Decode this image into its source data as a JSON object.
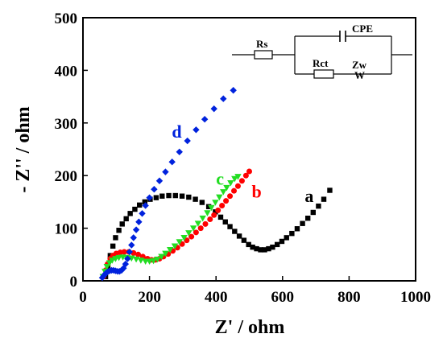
{
  "chart_data": {
    "type": "scatter",
    "xlabel": "Z' / ohm",
    "ylabel": "- Z'' / ohm",
    "xlim": [
      0,
      1000
    ],
    "ylim": [
      0,
      500
    ],
    "xticks": [
      "0",
      "200",
      "400",
      "600",
      "800",
      "1000"
    ],
    "yticks": [
      "0",
      "100",
      "200",
      "300",
      "400",
      "500"
    ],
    "grid": false,
    "series": [
      {
        "name": "a",
        "color": "#000000",
        "marker": "square",
        "x": [
          68,
          75,
          82,
          90,
          98,
          108,
          118,
          130,
          142,
          156,
          170,
          186,
          202,
          220,
          238,
          258,
          278,
          298,
          318,
          338,
          358,
          378,
          398,
          414,
          428,
          442,
          456,
          470,
          484,
          498,
          510,
          522,
          534,
          546,
          558,
          570,
          584,
          598,
          612,
          628,
          644,
          660,
          676,
          692,
          708,
          724,
          742
        ],
        "y": [
          8,
          28,
          48,
          66,
          82,
          96,
          108,
          118,
          128,
          136,
          144,
          150,
          155,
          158,
          161,
          162,
          162,
          161,
          159,
          155,
          149,
          141,
          131,
          121,
          112,
          103,
          94,
          85,
          77,
          69,
          64,
          61,
          59,
          59,
          61,
          64,
          69,
          75,
          82,
          90,
          99,
          109,
          119,
          130,
          142,
          155,
          172
        ]
      },
      {
        "name": "b",
        "color": "#ff0000",
        "marker": "circle",
        "x": [
          62,
          68,
          74,
          82,
          90,
          100,
          112,
          124,
          138,
          152,
          166,
          180,
          194,
          206,
          218,
          230,
          242,
          256,
          270,
          284,
          298,
          312,
          326,
          340,
          354,
          368,
          382,
          394,
          406,
          418,
          430,
          442,
          454,
          466,
          478,
          490,
          500
        ],
        "y": [
          8,
          20,
          32,
          42,
          48,
          52,
          54,
          55,
          55,
          53,
          50,
          46,
          42,
          40,
          40,
          42,
          46,
          51,
          57,
          63,
          70,
          77,
          84,
          92,
          100,
          108,
          117,
          125,
          134,
          143,
          152,
          161,
          171,
          180,
          190,
          200,
          208
        ]
      },
      {
        "name": "c",
        "color": "#22dd22",
        "marker": "triangle-down",
        "x": [
          60,
          66,
          72,
          80,
          88,
          98,
          108,
          120,
          132,
          146,
          160,
          174,
          188,
          200,
          212,
          224,
          236,
          248,
          262,
          276,
          290,
          304,
          318,
          332,
          346,
          360,
          374,
          386,
          398,
          410,
          422,
          432,
          444,
          456,
          466
        ],
        "y": [
          8,
          18,
          27,
          34,
          39,
          42,
          44,
          45,
          44,
          43,
          41,
          39,
          37,
          37,
          38,
          41,
          46,
          52,
          59,
          66,
          74,
          82,
          91,
          100,
          109,
          119,
          129,
          139,
          149,
          159,
          169,
          177,
          186,
          194,
          198
        ]
      },
      {
        "name": "d",
        "color": "#0022dd",
        "marker": "diamond",
        "x": [
          58,
          63,
          68,
          74,
          80,
          86,
          92,
          98,
          104,
          110,
          116,
          122,
          128,
          134,
          140,
          146,
          152,
          160,
          168,
          178,
          188,
          200,
          214,
          230,
          248,
          268,
          290,
          314,
          340,
          366,
          394,
          422,
          452
        ],
        "y": [
          6,
          10,
          14,
          17,
          19,
          20,
          20,
          19,
          18,
          18,
          20,
          24,
          32,
          42,
          55,
          68,
          82,
          97,
          112,
          128,
          143,
          158,
          174,
          190,
          207,
          226,
          245,
          266,
          287,
          307,
          327,
          346,
          362
        ]
      }
    ],
    "series_labels": [
      {
        "text": "a",
        "x": 680,
        "y": 150
      },
      {
        "text": "b",
        "x": 522,
        "y": 158
      },
      {
        "text": "c",
        "x": 412,
        "y": 183
      },
      {
        "text": "d",
        "x": 282,
        "y": 272
      }
    ],
    "inset_circuit": {
      "labels": [
        "Rs",
        "CPE",
        "Rct",
        "Zw",
        "W"
      ]
    }
  }
}
